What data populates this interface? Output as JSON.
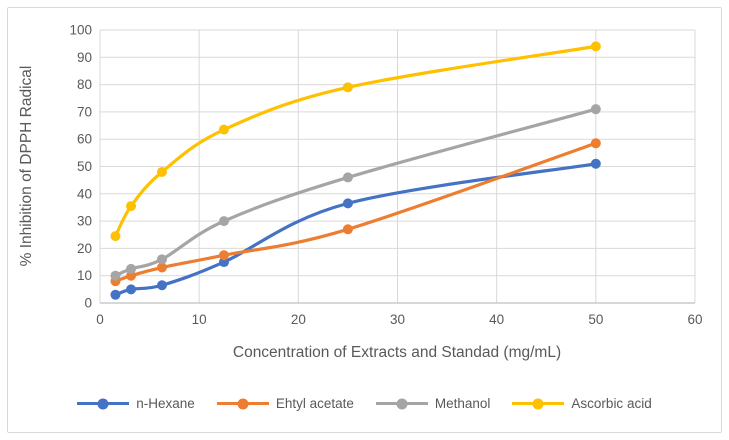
{
  "chart_data": {
    "type": "line",
    "title": "",
    "xlabel": "Concentration of Extracts and Standad (mg/mL)",
    "ylabel": "% Inhibition of DPPH Radical",
    "x": [
      1.56,
      3.13,
      6.25,
      12.5,
      25,
      50
    ],
    "series": [
      {
        "name": "n-Hexane",
        "color": "#4472C4",
        "values": [
          3,
          5,
          6.5,
          15,
          36.5,
          51
        ]
      },
      {
        "name": "Ehtyl acetate",
        "color": "#ED7D31",
        "values": [
          8,
          10,
          13,
          17.5,
          27,
          58.5
        ]
      },
      {
        "name": "Methanol",
        "color": "#A5A5A5",
        "values": [
          10,
          12.5,
          16,
          30,
          46,
          71
        ]
      },
      {
        "name": "Ascorbic acid",
        "color": "#FFC000",
        "values": [
          24.5,
          35.5,
          48,
          63.5,
          79,
          94
        ]
      }
    ],
    "xlim": [
      0,
      60
    ],
    "ylim": [
      0,
      100
    ],
    "x_ticks": [
      0,
      10,
      20,
      30,
      40,
      50,
      60
    ],
    "y_ticks": [
      0,
      10,
      20,
      30,
      40,
      50,
      60,
      70,
      80,
      90,
      100
    ],
    "grid": true,
    "smooth": true,
    "marker": "circle",
    "legend_position": "bottom",
    "gridline_color": "#D9D9D9",
    "axis_line_color": "#BFBFBF",
    "tick_label_color": "#595959",
    "axis_title_color": "#595959",
    "figure_border_color": "#D9D9D9"
  }
}
